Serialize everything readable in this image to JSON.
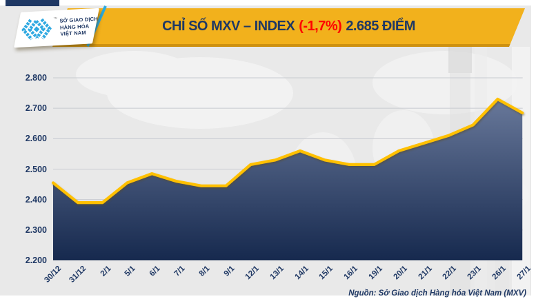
{
  "header": {
    "logo": {
      "icon": "mxv-chevrons",
      "icon_color": "#2FA9E1",
      "trademark": "™",
      "lines": [
        "SỞ GIAO DỊCH",
        "HÀNG HÓA",
        "VIỆT NAM"
      ],
      "text_color": "#1F3864"
    },
    "slash_color": "#29ABE2",
    "banner": {
      "bg": "#F2B11C",
      "bg_bottom_edge": "#CE9110",
      "title_prefix": "CHỈ SỐ MXV – INDEX",
      "title_change": "(-1,7%)",
      "title_suffix": "2.685 ĐIỂM",
      "text_color": "#1F3864",
      "change_color": "#FF0000"
    },
    "top_strip_color": "#1F3864"
  },
  "chart_data": {
    "type": "area",
    "title": "CHỈ SỐ MXV – INDEX (-1,7%) 2.685 ĐIỂM",
    "categories": [
      "30/12",
      "31/12",
      "2/1",
      "5/1",
      "6/1",
      "7/1",
      "8/1",
      "9/1",
      "12/1",
      "13/1",
      "14/1",
      "15/1",
      "16/1",
      "19/1",
      "20/1",
      "21/1",
      "22/1",
      "23/1",
      "26/1",
      "27/1"
    ],
    "values": [
      2455,
      2390,
      2390,
      2455,
      2485,
      2460,
      2445,
      2445,
      2515,
      2530,
      2560,
      2530,
      2515,
      2515,
      2560,
      2585,
      2610,
      2645,
      2730,
      2685
    ],
    "last_value": 2685,
    "change_pct": "-1,7%",
    "ylim": [
      2200,
      2800
    ],
    "ytick_step": 100,
    "ytick_labels": [
      "2.800",
      "2.700",
      "2.600",
      "2.500",
      "2.400",
      "2.300",
      "2.200"
    ],
    "xlabel": "",
    "ylabel": "",
    "grid": true,
    "legend": "none",
    "line_color": "#FFC000",
    "area_gradient_top": "#68789A",
    "area_gradient_bottom": "#16294E",
    "gridline_color": "#C7CAD0",
    "label_color": "#1F3864",
    "plot_background": "#E9E9E9"
  },
  "footer": {
    "source": "Nguồn: Sở Giao dịch Hàng hóa Việt Nam (MXV)"
  }
}
